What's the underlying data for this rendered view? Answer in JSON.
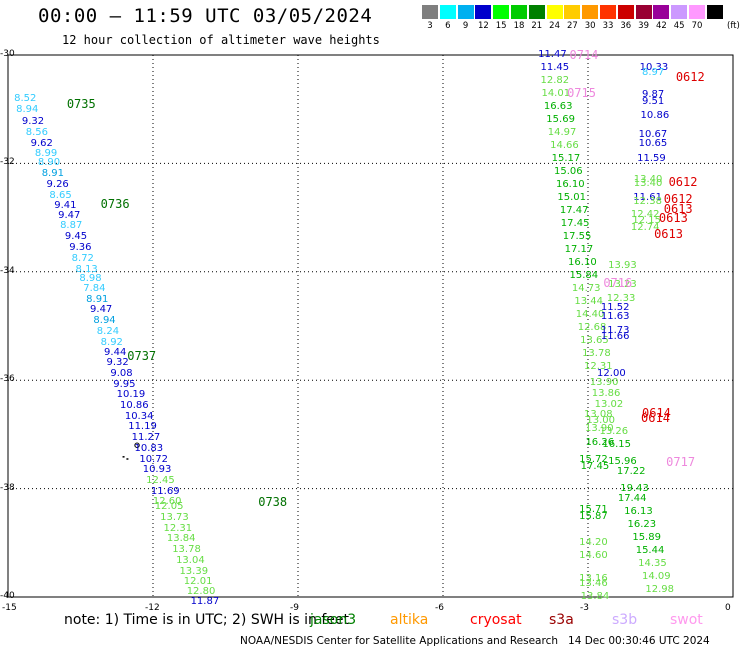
{
  "header": {
    "title": "00:00 – 11:59 UTC 03/05/2024",
    "subtitle": "12 hour collection of altimeter wave heights"
  },
  "legend": {
    "unit": "(ft)",
    "entries": [
      {
        "label": "3",
        "color": "#7f7f7f"
      },
      {
        "label": "6",
        "color": "#00ffff"
      },
      {
        "label": "9",
        "color": "#00b0f0"
      },
      {
        "label": "12",
        "color": "#0000cc"
      },
      {
        "label": "15",
        "color": "#00ff00"
      },
      {
        "label": "18",
        "color": "#00cc00"
      },
      {
        "label": "21",
        "color": "#008000"
      },
      {
        "label": "24",
        "color": "#ffff00"
      },
      {
        "label": "27",
        "color": "#ffcc00"
      },
      {
        "label": "30",
        "color": "#ff9900"
      },
      {
        "label": "33",
        "color": "#ff3300"
      },
      {
        "label": "36",
        "color": "#cc0000"
      },
      {
        "label": "39",
        "color": "#990033"
      },
      {
        "label": "42",
        "color": "#990099"
      },
      {
        "label": "45",
        "color": "#cc99ff"
      },
      {
        "label": "70",
        "color": "#ff99ff"
      },
      {
        "label": "",
        "color": "#000000"
      }
    ]
  },
  "axes": {
    "lat_labels": [
      "-30",
      "-32",
      "-34",
      "-36",
      "-38",
      "-40"
    ],
    "lon_labels": [
      "-15",
      "-12",
      "-9",
      "-6",
      "-3",
      "0"
    ]
  },
  "map": {
    "colors": {
      "c_gray": "#7f7f7f",
      "c_cyan": "#33ccff",
      "c_lblue": "#00a0e0",
      "c_blue": "#0000cc",
      "c_lgreen": "#66dd44",
      "c_green": "#00b000",
      "c_dgreen": "#007000",
      "c_red": "#dd0000",
      "c_pink": "#ee88dd"
    },
    "track_labels": [
      {
        "text": "0735",
        "lon": -13.7,
        "lat": -30.9,
        "color": "c_dgreen"
      },
      {
        "text": "0736",
        "lon": -13.0,
        "lat": -32.75,
        "color": "c_dgreen"
      },
      {
        "text": "0737",
        "lon": -12.45,
        "lat": -35.55,
        "color": "c_dgreen"
      },
      {
        "text": "0738",
        "lon": -9.74,
        "lat": -38.25,
        "color": "c_dgreen"
      },
      {
        "text": "0714",
        "lon": -3.3,
        "lat": -30.0,
        "color": "c_pink"
      },
      {
        "text": "0715",
        "lon": -3.35,
        "lat": -30.7,
        "color": "c_pink"
      },
      {
        "text": "0716",
        "lon": -2.6,
        "lat": -34.2,
        "color": "c_pink"
      },
      {
        "text": "0717",
        "lon": -1.3,
        "lat": -37.5,
        "color": "c_pink"
      },
      {
        "text": "0612",
        "lon": -1.1,
        "lat": -30.4,
        "color": "c_red"
      },
      {
        "text": "0612",
        "lon": -1.25,
        "lat": -32.35,
        "color": "c_red"
      },
      {
        "text": "0612",
        "lon": -1.35,
        "lat": -32.65,
        "color": "c_red"
      },
      {
        "text": "0613",
        "lon": -1.35,
        "lat": -32.85,
        "color": "c_red"
      },
      {
        "text": "0613",
        "lon": -1.45,
        "lat": -33.0,
        "color": "c_red"
      },
      {
        "text": "0613",
        "lon": -1.55,
        "lat": -33.3,
        "color": "c_red"
      },
      {
        "text": "0614",
        "lon": -1.8,
        "lat": -36.6,
        "color": "c_red"
      },
      {
        "text": "0614",
        "lon": -1.82,
        "lat": -36.7,
        "color": "c_red"
      }
    ],
    "points": [
      {
        "v": "8.52",
        "lon": -14.79,
        "lat": -30.82,
        "color": "c_cyan"
      },
      {
        "v": "8.94",
        "lon": -14.75,
        "lat": -31.02,
        "color": "c_cyan"
      },
      {
        "v": "9.32",
        "lon": -14.63,
        "lat": -31.23,
        "color": "c_blue"
      },
      {
        "v": "8.56",
        "lon": -14.55,
        "lat": -31.43,
        "color": "c_cyan"
      },
      {
        "v": "9.62",
        "lon": -14.45,
        "lat": -31.64,
        "color": "c_blue"
      },
      {
        "v": "8.99",
        "lon": -14.36,
        "lat": -31.82,
        "color": "c_cyan"
      },
      {
        "v": "8.90",
        "lon": -14.3,
        "lat": -32.0,
        "color": "c_cyan"
      },
      {
        "v": "8.91",
        "lon": -14.22,
        "lat": -32.2,
        "color": "c_lblue"
      },
      {
        "v": "9.26",
        "lon": -14.12,
        "lat": -32.39,
        "color": "c_blue"
      },
      {
        "v": "8.65",
        "lon": -14.06,
        "lat": -32.6,
        "color": "c_cyan"
      },
      {
        "v": "9.41",
        "lon": -13.96,
        "lat": -32.78,
        "color": "c_blue"
      },
      {
        "v": "9.47",
        "lon": -13.88,
        "lat": -32.97,
        "color": "c_blue"
      },
      {
        "v": "8.87",
        "lon": -13.84,
        "lat": -33.16,
        "color": "c_cyan"
      },
      {
        "v": "9.45",
        "lon": -13.74,
        "lat": -33.36,
        "color": "c_blue"
      },
      {
        "v": "9.36",
        "lon": -13.65,
        "lat": -33.56,
        "color": "c_blue"
      },
      {
        "v": "8.72",
        "lon": -13.6,
        "lat": -33.76,
        "color": "c_cyan"
      },
      {
        "v": "8.13",
        "lon": -13.52,
        "lat": -33.96,
        "color": "c_cyan"
      },
      {
        "v": "8.98",
        "lon": -13.44,
        "lat": -34.13,
        "color": "c_cyan"
      },
      {
        "v": "7.84",
        "lon": -13.36,
        "lat": -34.32,
        "color": "c_cyan"
      },
      {
        "v": "8.91",
        "lon": -13.3,
        "lat": -34.52,
        "color": "c_lblue"
      },
      {
        "v": "9.47",
        "lon": -13.22,
        "lat": -34.71,
        "color": "c_blue"
      },
      {
        "v": "8.94",
        "lon": -13.15,
        "lat": -34.91,
        "color": "c_lblue"
      },
      {
        "v": "8.24",
        "lon": -13.08,
        "lat": -35.11,
        "color": "c_cyan"
      },
      {
        "v": "8.92",
        "lon": -13.0,
        "lat": -35.31,
        "color": "c_cyan"
      },
      {
        "v": "9.44",
        "lon": -12.93,
        "lat": -35.5,
        "color": "c_blue"
      },
      {
        "v": "9.32",
        "lon": -12.88,
        "lat": -35.69,
        "color": "c_blue"
      },
      {
        "v": "9.08",
        "lon": -12.8,
        "lat": -35.89,
        "color": "c_blue"
      },
      {
        "v": "9.95",
        "lon": -12.74,
        "lat": -36.08,
        "color": "c_blue"
      },
      {
        "v": "10.19",
        "lon": -12.67,
        "lat": -36.27,
        "color": "c_blue"
      },
      {
        "v": "10.86",
        "lon": -12.6,
        "lat": -36.47,
        "color": "c_blue"
      },
      {
        "v": "10.34",
        "lon": -12.5,
        "lat": -36.67,
        "color": "c_blue"
      },
      {
        "v": "11.19",
        "lon": -12.43,
        "lat": -36.87,
        "color": "c_blue"
      },
      {
        "v": "11.27",
        "lon": -12.36,
        "lat": -37.07,
        "color": "c_blue"
      },
      {
        "v": "10.83",
        "lon": -12.3,
        "lat": -37.27,
        "color": "c_blue"
      },
      {
        "v": "10.72",
        "lon": -12.2,
        "lat": -37.47,
        "color": "c_blue"
      },
      {
        "v": "10.93",
        "lon": -12.13,
        "lat": -37.66,
        "color": "c_blue"
      },
      {
        "v": "12.45",
        "lon": -12.06,
        "lat": -37.86,
        "color": "c_lgreen"
      },
      {
        "v": "11.69",
        "lon": -11.96,
        "lat": -38.06,
        "color": "c_blue"
      },
      {
        "v": "12.60",
        "lon": -11.92,
        "lat": -38.24,
        "color": "c_lgreen"
      },
      {
        "v": "12.05",
        "lon": -11.88,
        "lat": -38.34,
        "color": "c_lgreen"
      },
      {
        "v": "13.73",
        "lon": -11.77,
        "lat": -38.54,
        "color": "c_lgreen"
      },
      {
        "v": "12.31",
        "lon": -11.7,
        "lat": -38.74,
        "color": "c_lgreen"
      },
      {
        "v": "13.84",
        "lon": -11.63,
        "lat": -38.93,
        "color": "c_lgreen"
      },
      {
        "v": "13.78",
        "lon": -11.52,
        "lat": -39.13,
        "color": "c_lgreen"
      },
      {
        "v": "13.04",
        "lon": -11.44,
        "lat": -39.33,
        "color": "c_lgreen"
      },
      {
        "v": "13.39",
        "lon": -11.37,
        "lat": -39.53,
        "color": "c_lgreen"
      },
      {
        "v": "12.01",
        "lon": -11.28,
        "lat": -39.73,
        "color": "c_lgreen"
      },
      {
        "v": "12.80",
        "lon": -11.22,
        "lat": -39.91,
        "color": "c_lgreen"
      },
      {
        "v": "11.87",
        "lon": -11.14,
        "lat": -40.1,
        "color": "c_blue"
      },
      {
        "v": "11.47",
        "lon": -3.95,
        "lat": -30.0,
        "color": "c_blue"
      },
      {
        "v": "11.45",
        "lon": -3.9,
        "lat": -30.24,
        "color": "c_blue"
      },
      {
        "v": "12.82",
        "lon": -3.9,
        "lat": -30.48,
        "color": "c_lgreen"
      },
      {
        "v": "14.01",
        "lon": -3.88,
        "lat": -30.72,
        "color": "c_lgreen"
      },
      {
        "v": "16.63",
        "lon": -3.83,
        "lat": -30.96,
        "color": "c_green"
      },
      {
        "v": "15.69",
        "lon": -3.78,
        "lat": -31.2,
        "color": "c_green"
      },
      {
        "v": "14.97",
        "lon": -3.75,
        "lat": -31.44,
        "color": "c_lgreen"
      },
      {
        "v": "14.66",
        "lon": -3.7,
        "lat": -31.68,
        "color": "c_lgreen"
      },
      {
        "v": "15.17",
        "lon": -3.67,
        "lat": -31.92,
        "color": "c_green"
      },
      {
        "v": "15.06",
        "lon": -3.62,
        "lat": -32.16,
        "color": "c_green"
      },
      {
        "v": "16.10",
        "lon": -3.58,
        "lat": -32.4,
        "color": "c_green"
      },
      {
        "v": "15.01",
        "lon": -3.55,
        "lat": -32.64,
        "color": "c_green"
      },
      {
        "v": "17.47",
        "lon": -3.5,
        "lat": -32.88,
        "color": "c_green"
      },
      {
        "v": "17.45",
        "lon": -3.48,
        "lat": -33.12,
        "color": "c_green"
      },
      {
        "v": "17.55",
        "lon": -3.44,
        "lat": -33.36,
        "color": "c_green"
      },
      {
        "v": "17.17",
        "lon": -3.4,
        "lat": -33.6,
        "color": "c_green"
      },
      {
        "v": "16.10",
        "lon": -3.33,
        "lat": -33.84,
        "color": "c_green"
      },
      {
        "v": "15.84",
        "lon": -3.3,
        "lat": -34.08,
        "color": "c_green"
      },
      {
        "v": "14.73",
        "lon": -3.25,
        "lat": -34.32,
        "color": "c_lgreen"
      },
      {
        "v": "13.44",
        "lon": -3.2,
        "lat": -34.56,
        "color": "c_lgreen"
      },
      {
        "v": "14.40",
        "lon": -3.17,
        "lat": -34.8,
        "color": "c_lgreen"
      },
      {
        "v": "12.68",
        "lon": -3.13,
        "lat": -35.04,
        "color": "c_lgreen"
      },
      {
        "v": "13.65",
        "lon": -3.08,
        "lat": -35.28,
        "color": "c_lgreen"
      },
      {
        "v": "13.78",
        "lon": -3.04,
        "lat": -35.52,
        "color": "c_lgreen"
      },
      {
        "v": "12.31",
        "lon": -3.0,
        "lat": -35.76,
        "color": "c_lgreen"
      },
      {
        "v": "13.90",
        "lon": -2.88,
        "lat": -36.05,
        "color": "c_lgreen"
      },
      {
        "v": "13.86",
        "lon": -2.84,
        "lat": -36.25,
        "color": "c_lgreen"
      },
      {
        "v": "13.02",
        "lon": -2.78,
        "lat": -36.45,
        "color": "c_lgreen"
      },
      {
        "v": "13.08",
        "lon": -3.0,
        "lat": -36.65,
        "color": "c_lgreen"
      },
      {
        "v": "13.00",
        "lon": -2.95,
        "lat": -36.75,
        "color": "c_lgreen"
      },
      {
        "v": "13.90",
        "lon": -2.98,
        "lat": -36.9,
        "color": "c_lgreen"
      },
      {
        "v": "16.26",
        "lon": -2.97,
        "lat": -37.15,
        "color": "c_green"
      },
      {
        "v": "13.26",
        "lon": -2.68,
        "lat": -36.95,
        "color": "c_lgreen"
      },
      {
        "v": "16.15",
        "lon": -2.62,
        "lat": -37.2,
        "color": "c_green"
      },
      {
        "v": "15.72",
        "lon": -3.1,
        "lat": -37.48,
        "color": "c_green"
      },
      {
        "v": "17.45",
        "lon": -3.07,
        "lat": -37.6,
        "color": "c_green"
      },
      {
        "v": "15.96",
        "lon": -2.5,
        "lat": -37.5,
        "color": "c_green"
      },
      {
        "v": "17.22",
        "lon": -2.32,
        "lat": -37.7,
        "color": "c_green"
      },
      {
        "v": "19.43",
        "lon": -2.25,
        "lat": -38.0,
        "color": "c_green"
      },
      {
        "v": "17.44",
        "lon": -2.3,
        "lat": -38.2,
        "color": "c_green"
      },
      {
        "v": "16.13",
        "lon": -2.17,
        "lat": -38.44,
        "color": "c_green"
      },
      {
        "v": "16.23",
        "lon": -2.1,
        "lat": -38.68,
        "color": "c_green"
      },
      {
        "v": "15.89",
        "lon": -2.0,
        "lat": -38.92,
        "color": "c_green"
      },
      {
        "v": "15.44",
        "lon": -1.93,
        "lat": -39.16,
        "color": "c_green"
      },
      {
        "v": "14.35",
        "lon": -1.88,
        "lat": -39.4,
        "color": "c_lgreen"
      },
      {
        "v": "14.09",
        "lon": -1.8,
        "lat": -39.64,
        "color": "c_lgreen"
      },
      {
        "v": "12.98",
        "lon": -1.73,
        "lat": -39.88,
        "color": "c_lgreen"
      },
      {
        "v": "15.71",
        "lon": -3.1,
        "lat": -38.4,
        "color": "c_green"
      },
      {
        "v": "15.87",
        "lon": -3.1,
        "lat": -38.52,
        "color": "c_green"
      },
      {
        "v": "14.20",
        "lon": -3.1,
        "lat": -39.0,
        "color": "c_lgreen"
      },
      {
        "v": "14.60",
        "lon": -3.1,
        "lat": -39.24,
        "color": "c_lgreen"
      },
      {
        "v": "13.16",
        "lon": -3.1,
        "lat": -39.66,
        "color": "c_lgreen"
      },
      {
        "v": "13.46",
        "lon": -3.1,
        "lat": -39.76,
        "color": "c_lgreen"
      },
      {
        "v": "13.84",
        "lon": -3.07,
        "lat": -40.0,
        "color": "c_lgreen"
      },
      {
        "v": "10.33",
        "lon": -1.85,
        "lat": -30.24,
        "color": "c_blue"
      },
      {
        "v": "8.97",
        "lon": -1.8,
        "lat": -30.34,
        "color": "c_cyan"
      },
      {
        "v": "9.87",
        "lon": -1.8,
        "lat": -30.74,
        "color": "c_blue"
      },
      {
        "v": "9.51",
        "lon": -1.8,
        "lat": -30.86,
        "color": "c_blue"
      },
      {
        "v": "10.86",
        "lon": -1.83,
        "lat": -31.12,
        "color": "c_blue"
      },
      {
        "v": "10.67",
        "lon": -1.87,
        "lat": -31.48,
        "color": "c_blue"
      },
      {
        "v": "10.65",
        "lon": -1.87,
        "lat": -31.64,
        "color": "c_blue"
      },
      {
        "v": "11.59",
        "lon": -1.9,
        "lat": -31.92,
        "color": "c_blue"
      },
      {
        "v": "13.40",
        "lon": -1.97,
        "lat": -32.3,
        "color": "c_lgreen"
      },
      {
        "v": "13.40",
        "lon": -1.97,
        "lat": -32.38,
        "color": "c_lgreen"
      },
      {
        "v": "11.61",
        "lon": -1.98,
        "lat": -32.64,
        "color": "c_blue"
      },
      {
        "v": "12.38",
        "lon": -1.98,
        "lat": -32.72,
        "color": "c_lgreen"
      },
      {
        "v": "12.42",
        "lon": -2.03,
        "lat": -32.96,
        "color": "c_lgreen"
      },
      {
        "v": "12.15",
        "lon": -2.0,
        "lat": -33.06,
        "color": "c_lgreen"
      },
      {
        "v": "12.74",
        "lon": -2.03,
        "lat": -33.2,
        "color": "c_lgreen"
      },
      {
        "v": "13.93",
        "lon": -2.5,
        "lat": -33.9,
        "color": "c_lgreen"
      },
      {
        "v": "13.23",
        "lon": -2.5,
        "lat": -34.24,
        "color": "c_lgreen"
      },
      {
        "v": "12.33",
        "lon": -2.53,
        "lat": -34.5,
        "color": "c_lgreen"
      },
      {
        "v": "11.52",
        "lon": -2.65,
        "lat": -34.66,
        "color": "c_blue"
      },
      {
        "v": "11.63",
        "lon": -2.65,
        "lat": -34.84,
        "color": "c_blue"
      },
      {
        "v": "11.73",
        "lon": -2.65,
        "lat": -35.1,
        "color": "c_blue"
      },
      {
        "v": "11.66",
        "lon": -2.65,
        "lat": -35.2,
        "color": "c_blue"
      },
      {
        "v": "12.00",
        "lon": -2.73,
        "lat": -35.88,
        "color": "c_blue"
      }
    ],
    "island_dots": [
      {
        "lon": -12.33,
        "lat": -37.2
      },
      {
        "lon": -12.63,
        "lat": -37.4
      },
      {
        "lon": -12.55,
        "lat": -37.44
      }
    ]
  },
  "note": "note: 1) Time is in UTC; 2) SWH is in feet",
  "satellites": [
    {
      "name": "jason3",
      "color": "#008000"
    },
    {
      "name": "altika",
      "color": "#ff9900"
    },
    {
      "name": "cryosat",
      "color": "#ff0000"
    },
    {
      "name": "s3a",
      "color": "#990000"
    },
    {
      "name": "s3b",
      "color": "#ccaaff"
    },
    {
      "name": "swot",
      "color": "#ff99ee"
    }
  ],
  "footer": "NOAA/NESDIS Center for Satellite Applications and Research   14 Dec 00:30:46 UTC 2024"
}
